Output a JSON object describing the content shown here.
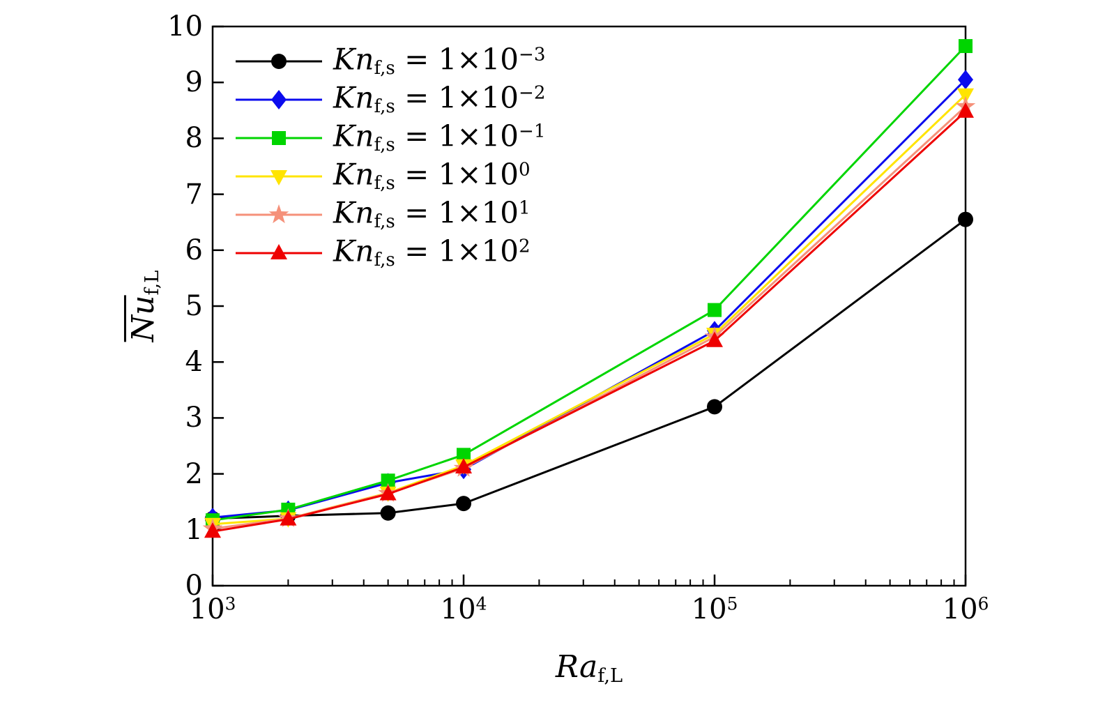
{
  "page": {
    "background": "#ffffff"
  },
  "chart_data": {
    "type": "line",
    "title": "",
    "x_scale": "log",
    "y_scale": "linear",
    "xlim": [
      1000,
      1000000
    ],
    "ylim": [
      0,
      10
    ],
    "grid": false,
    "legend_position": "upper-left",
    "xlabel": "Ra_f,L",
    "xlabel_parts": {
      "pre": "Ra",
      "sub": "f,L"
    },
    "ylabel": "overline(Nu)_f,L",
    "ylabel_parts": {
      "pre": "Nu",
      "sub": "f,L",
      "overline": true
    },
    "x_major_ticks": [
      1000,
      10000,
      100000,
      1000000
    ],
    "x_tick_labels": [
      "10^3",
      "10^4",
      "10^5",
      "10^6"
    ],
    "x_minor_tick_decades": [
      3,
      4,
      5
    ],
    "y_ticks": [
      0,
      1,
      2,
      3,
      4,
      5,
      6,
      7,
      8,
      9,
      10
    ],
    "x": [
      1000,
      2000,
      5000,
      10000,
      100000,
      1000000
    ],
    "series": [
      {
        "name": "Kn_f,s = 1×10^-3",
        "label_parts": {
          "pre": "Kn",
          "sub": "f,s",
          "mid": " = 1×10",
          "sup": "−3"
        },
        "marker": "circle",
        "color": "#000000",
        "values": [
          1.2,
          1.25,
          1.3,
          1.47,
          3.2,
          6.55
        ]
      },
      {
        "name": "Kn_f,s = 1×10^-2",
        "label_parts": {
          "pre": "Kn",
          "sub": "f,s",
          "mid": " = 1×10",
          "sup": "−2"
        },
        "marker": "diamond",
        "color": "#0b0bee",
        "values": [
          1.22,
          1.35,
          1.84,
          2.08,
          4.56,
          9.05
        ]
      },
      {
        "name": "Kn_f,s = 1×10^-1",
        "label_parts": {
          "pre": "Kn",
          "sub": "f,s",
          "mid": " = 1×10",
          "sup": "−1"
        },
        "marker": "square",
        "color": "#00d500",
        "values": [
          1.17,
          1.36,
          1.88,
          2.34,
          4.93,
          9.65
        ]
      },
      {
        "name": "Kn_f,s = 1×10^0",
        "label_parts": {
          "pre": "Kn",
          "sub": "f,s",
          "mid": " = 1×10",
          "sup": "0"
        },
        "marker": "triangle-down",
        "color": "#ffe400",
        "values": [
          1.1,
          1.2,
          1.66,
          2.15,
          4.5,
          8.78
        ]
      },
      {
        "name": "Kn_f,s = 1×10^1",
        "label_parts": {
          "pre": "Kn",
          "sub": "f,s",
          "mid": " = 1×10",
          "sup": "1"
        },
        "marker": "star",
        "color": "#f5917a",
        "values": [
          1.02,
          1.2,
          1.65,
          2.1,
          4.45,
          8.57
        ]
      },
      {
        "name": "Kn_f,s = 1×10^2",
        "label_parts": {
          "pre": "Kn",
          "sub": "f,s",
          "mid": " = 1×10",
          "sup": "2"
        },
        "marker": "triangle-up",
        "color": "#ee0000",
        "values": [
          0.97,
          1.19,
          1.64,
          2.12,
          4.38,
          8.48
        ]
      }
    ]
  }
}
